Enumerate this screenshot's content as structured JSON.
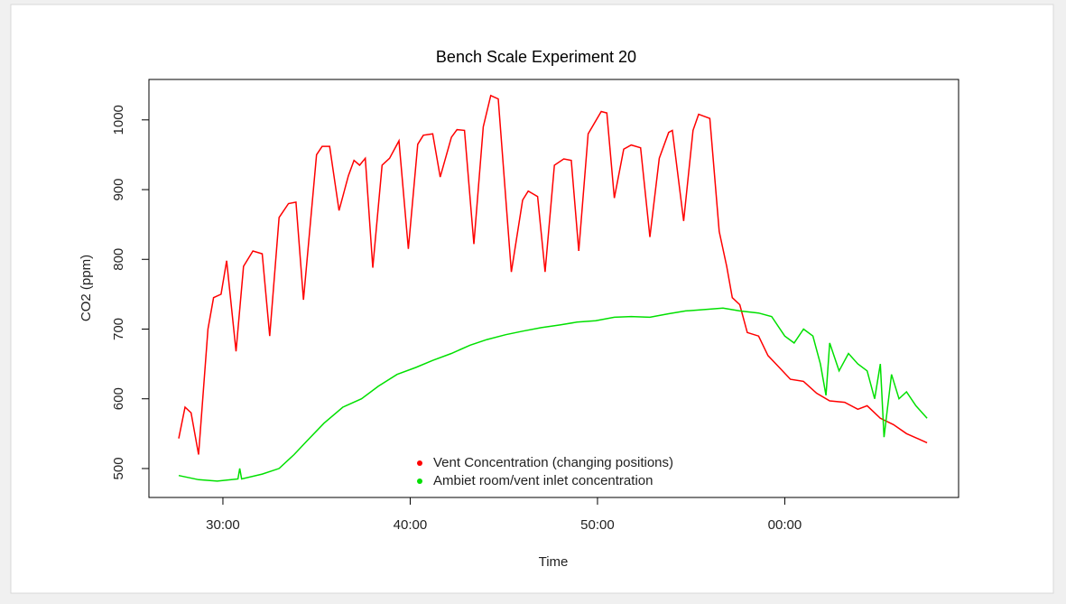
{
  "chart_data": {
    "type": "line",
    "title": "Bench Scale Experiment 20",
    "xlabel": "Time",
    "ylabel": "CO2 (ppm)",
    "xlim": [
      26.05,
      69.28
    ],
    "ylim": [
      458.5,
      1058
    ],
    "xticks": [
      {
        "value": 30,
        "label": "30:00"
      },
      {
        "value": 40,
        "label": "40:00"
      },
      {
        "value": 50,
        "label": "50:00"
      },
      {
        "value": 60,
        "label": "00:00"
      }
    ],
    "yticks": [
      500,
      600,
      700,
      800,
      900,
      1000
    ],
    "legend": "bottom",
    "series": [
      {
        "name": "Vent Concentration (changing positions)",
        "color": "#ff0000",
        "x": [
          27.64,
          27.98,
          28.3,
          28.7,
          29.2,
          29.5,
          29.9,
          30.2,
          30.7,
          31.1,
          31.6,
          32.1,
          32.5,
          33.0,
          33.5,
          33.9,
          34.3,
          35.0,
          35.3,
          35.7,
          36.2,
          36.7,
          37.0,
          37.3,
          37.6,
          38.0,
          38.5,
          38.9,
          39.4,
          39.9,
          40.4,
          40.7,
          41.2,
          41.6,
          42.2,
          42.5,
          42.9,
          43.4,
          43.9,
          44.3,
          44.7,
          45.4,
          46.0,
          46.3,
          46.8,
          47.2,
          47.7,
          48.2,
          48.6,
          49.0,
          49.5,
          50.2,
          50.5,
          50.9,
          51.4,
          51.8,
          52.3,
          52.8,
          53.3,
          53.8,
          54.0,
          54.6,
          55.1,
          55.4,
          56.0,
          56.5,
          56.9,
          57.2,
          57.6,
          58.0,
          58.6,
          59.1,
          59.6,
          60.3,
          61.0,
          61.7,
          62.4,
          63.2,
          63.9,
          64.4,
          65.1,
          65.8,
          66.5,
          67.6
        ],
        "values": [
          543,
          588,
          580,
          520,
          700,
          745,
          750,
          798,
          668,
          790,
          812,
          808,
          690,
          860,
          880,
          882,
          742,
          950,
          962,
          962,
          870,
          920,
          942,
          935,
          945,
          788,
          935,
          945,
          970,
          815,
          965,
          978,
          980,
          918,
          975,
          986,
          985,
          822,
          990,
          1035,
          1030,
          782,
          885,
          898,
          890,
          782,
          935,
          944,
          942,
          812,
          980,
          1012,
          1010,
          888,
          958,
          964,
          960,
          832,
          945,
          982,
          985,
          855,
          985,
          1008,
          1002,
          840,
          790,
          745,
          735,
          695,
          690,
          662,
          648,
          628,
          625,
          608,
          597,
          595,
          585,
          590,
          572,
          563,
          550,
          537
        ]
      },
      {
        "name": "Ambiet room/vent inlet concentration",
        "color": "#00e000",
        "x": [
          27.64,
          28.7,
          29.7,
          30.8,
          30.9,
          31.0,
          32.1,
          33.0,
          33.8,
          34.5,
          35.4,
          36.4,
          37.4,
          38.3,
          39.3,
          40.3,
          41.2,
          42.2,
          43.2,
          44.1,
          45.1,
          46.0,
          47.0,
          48.0,
          48.9,
          49.9,
          50.9,
          51.8,
          52.8,
          53.8,
          54.7,
          55.7,
          56.7,
          57.6,
          58.6,
          59.3,
          60.0,
          60.5,
          61.0,
          61.5,
          61.9,
          62.2,
          62.4,
          62.9,
          63.4,
          63.9,
          64.4,
          64.8,
          65.1,
          65.3,
          65.7,
          66.1,
          66.5,
          67.0,
          67.6
        ],
        "values": [
          490,
          484,
          482,
          485,
          500,
          485,
          492,
          500,
          520,
          540,
          565,
          588,
          600,
          618,
          635,
          645,
          655,
          665,
          677,
          685,
          692,
          697,
          702,
          706,
          710,
          712,
          717,
          718,
          717,
          722,
          726,
          728,
          730,
          726,
          723,
          718,
          690,
          680,
          700,
          690,
          650,
          605,
          680,
          640,
          665,
          650,
          640,
          600,
          650,
          545,
          635,
          600,
          610,
          590,
          572
        ]
      }
    ]
  }
}
